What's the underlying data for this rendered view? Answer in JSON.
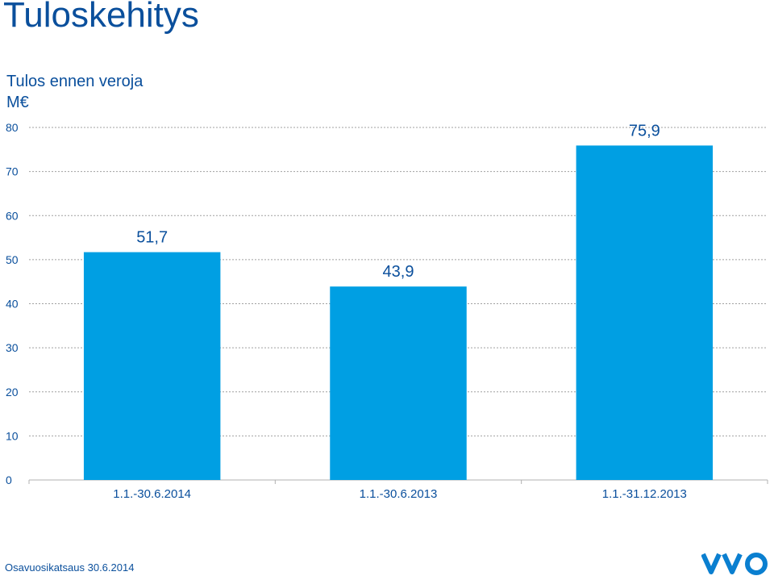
{
  "slide": {
    "title": "Tuloskehitys",
    "footer": "Osavuosikatsaus 30.6.2014",
    "logo_text": "VVO"
  },
  "colors": {
    "title": "#0a4f9c",
    "bar": "#009fe3",
    "axis_text": "#0a4f9c",
    "gridline": "#a0a0a0"
  },
  "chart_data": {
    "type": "bar",
    "title": "Tulos ennen veroja",
    "ylabel": "M€",
    "xlabel": "",
    "categories": [
      "1.1.-30.6.2014",
      "1.1.-30.6.2013",
      "1.1.-31.12.2013"
    ],
    "values": [
      51.7,
      43.9,
      75.9
    ],
    "data_labels": [
      "51,7",
      "43,9",
      "75,9"
    ],
    "ylim": [
      0,
      80
    ],
    "yticks": [
      0,
      10,
      20,
      30,
      40,
      50,
      60,
      70,
      80
    ],
    "grid": true,
    "legend": false
  }
}
